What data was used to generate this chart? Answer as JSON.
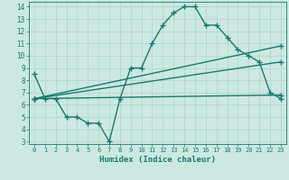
{
  "line1_x": [
    0,
    1,
    2,
    3,
    4,
    5,
    6,
    7,
    8,
    9,
    10,
    11,
    12,
    13,
    14,
    15,
    16,
    17,
    18,
    19,
    20,
    21,
    22,
    23
  ],
  "line1_y": [
    8.5,
    6.5,
    6.5,
    5.0,
    5.0,
    4.5,
    4.5,
    3.0,
    6.5,
    9.0,
    9.0,
    11.0,
    12.5,
    13.5,
    14.0,
    14.0,
    12.5,
    12.5,
    11.5,
    10.5,
    10.0,
    9.5,
    7.0,
    6.5
  ],
  "line2_x": [
    0,
    23
  ],
  "line2_y": [
    6.5,
    10.8
  ],
  "line3_x": [
    0,
    23
  ],
  "line3_y": [
    6.5,
    9.5
  ],
  "line4_x": [
    0,
    23
  ],
  "line4_y": [
    6.5,
    6.8
  ],
  "color": "#1a7a6e",
  "bg_color": "#cce8e2",
  "grid_color": "#b0d8d0",
  "xlabel": "Humidex (Indice chaleur)",
  "xlim": [
    -0.5,
    23.5
  ],
  "ylim": [
    2.8,
    14.4
  ],
  "xticks": [
    0,
    1,
    2,
    3,
    4,
    5,
    6,
    7,
    8,
    9,
    10,
    11,
    12,
    13,
    14,
    15,
    16,
    17,
    18,
    19,
    20,
    21,
    22,
    23
  ],
  "yticks": [
    3,
    4,
    5,
    6,
    7,
    8,
    9,
    10,
    11,
    12,
    13,
    14
  ],
  "marker": "+",
  "linewidth": 1.0,
  "markersize": 4,
  "markeredgewidth": 1.0
}
